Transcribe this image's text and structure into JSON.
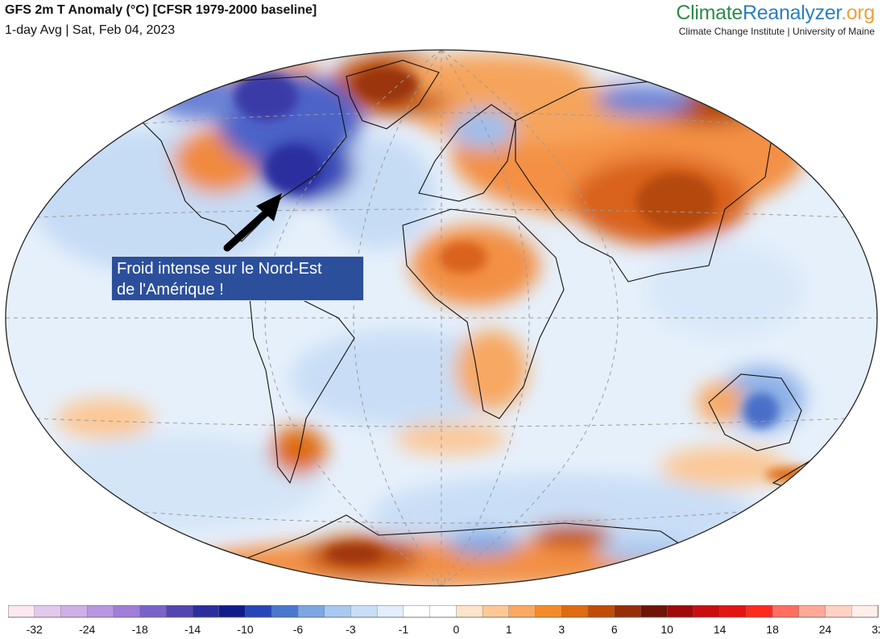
{
  "header": {
    "title": "GFS 2m T Anomaly (°C) [CFSR 1979-2000 baseline]",
    "subtitle": "1-day Avg | Sat, Feb 04, 2023"
  },
  "brand": {
    "part1": "Climate",
    "part2": "Reanalyzer",
    "part3": ".org",
    "sub": "Climate Change Institute | University of Maine",
    "colors": {
      "part1": "#2f8a4a",
      "part2": "#2a7fc0",
      "part3": "#e8a33c"
    }
  },
  "annotation": {
    "line1": "Froid intense sur le Nord-Est",
    "line2": "de l'Amérique !"
  },
  "legend": {
    "ticks": [
      "-32",
      "-24",
      "-18",
      "-14",
      "-10",
      "-6",
      "-3",
      "-1",
      "0",
      "1",
      "3",
      "6",
      "10",
      "14",
      "18",
      "24",
      "32"
    ],
    "colors": [
      "#fbe8f0",
      "#e2c9ec",
      "#ceb0e6",
      "#b997e0",
      "#a07ed8",
      "#7a62c8",
      "#5346b0",
      "#2c2e9e",
      "#101c8a",
      "#2746b8",
      "#4a78d0",
      "#7ba6e2",
      "#a8c8ef",
      "#c9def6",
      "#e3eefb",
      "#ffffff",
      "#ffffff",
      "#fde4cc",
      "#fcc896",
      "#fba862",
      "#f58a2a",
      "#e06a10",
      "#c04c08",
      "#962e08",
      "#6e1408",
      "#a00a0a",
      "#c80e0e",
      "#e41414",
      "#ff2a1e",
      "#ff6e5e",
      "#ffa898",
      "#ffd2c6",
      "#ffeeea"
    ]
  }
}
